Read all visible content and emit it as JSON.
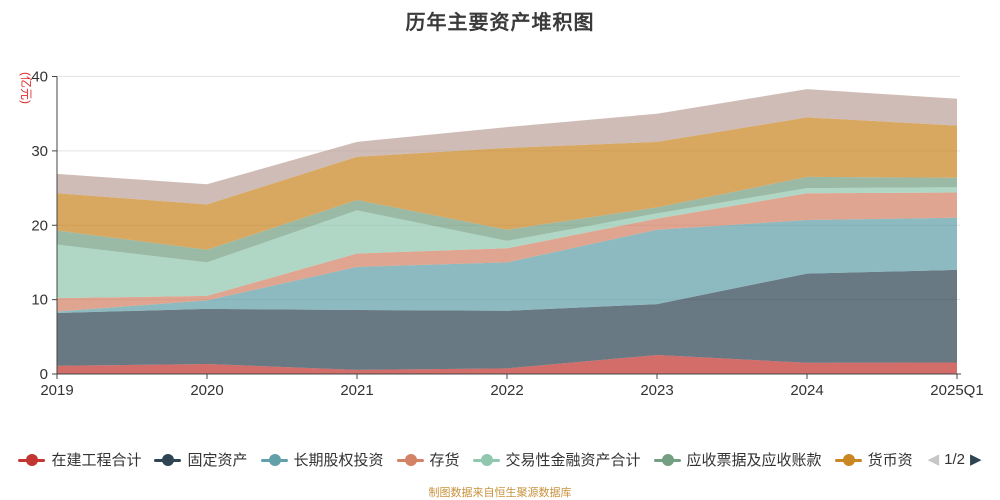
{
  "title": "历年主要资产堆积图",
  "y_axis_unit": "(亿元)",
  "footer_credit": "制图数据来自恒生聚源数据库",
  "colors": {
    "axis_line": "#444444",
    "tick_label": "#333333",
    "grid_line": "#e3e3e3",
    "y_unit_label": "#e02b2b",
    "footer_text": "#c8923c",
    "pager_prev": "#c7c7c7",
    "pager_next": "#2f4554"
  },
  "legend": {
    "items": [
      {
        "label": "在建工程合计",
        "color": "#c23531"
      },
      {
        "label": "固定资产",
        "color": "#2f4554"
      },
      {
        "label": "长期股权投资",
        "color": "#61a0a8"
      },
      {
        "label": "存货",
        "color": "#d48265"
      },
      {
        "label": "交易性金融资产合计",
        "color": "#91c7ae"
      },
      {
        "label": "应收票据及应收账款",
        "color": "#749f83"
      },
      {
        "label": "货币资",
        "color": "#ca8622"
      }
    ],
    "pagination": {
      "prev_icon": "◀",
      "page": "1/2",
      "next_icon": "▶"
    }
  },
  "chart_data": {
    "type": "area",
    "stacked": true,
    "grid": true,
    "categories": [
      "2019",
      "2020",
      "2021",
      "2022",
      "2023",
      "2024",
      "2025Q1"
    ],
    "series": [
      {
        "name": "在建工程合计",
        "color": "#c23531",
        "values": [
          1.1,
          1.35,
          0.55,
          0.75,
          2.55,
          1.5,
          1.55
        ]
      },
      {
        "name": "固定资产",
        "color": "#2f4554",
        "values": [
          7.1,
          7.4,
          8.05,
          7.75,
          6.85,
          12.0,
          12.45
        ]
      },
      {
        "name": "长期股权投资",
        "color": "#61a0a8",
        "values": [
          0.2,
          1.15,
          5.8,
          6.5,
          10.0,
          7.2,
          7.0
        ]
      },
      {
        "name": "存货",
        "color": "#d48265",
        "values": [
          1.8,
          0.6,
          1.8,
          1.9,
          1.5,
          3.6,
          3.4
        ]
      },
      {
        "name": "交易性金融资产合计",
        "color": "#91c7ae",
        "values": [
          7.2,
          4.5,
          5.8,
          1.0,
          0.7,
          0.7,
          0.7
        ]
      },
      {
        "name": "应收票据及应收账款",
        "color": "#749f83",
        "values": [
          1.9,
          1.7,
          1.4,
          1.5,
          0.8,
          1.5,
          1.3
        ]
      },
      {
        "name": "货币资",
        "color": "#ca8622",
        "values": [
          5.0,
          6.1,
          5.8,
          11.0,
          8.8,
          8.0,
          7.0
        ]
      },
      {
        "name": "",
        "color": "#bda29a",
        "values": [
          2.6,
          2.7,
          2.0,
          2.8,
          3.8,
          3.8,
          3.6
        ]
      }
    ],
    "ylabel": "(亿元)",
    "ylim": [
      0,
      40
    ],
    "y_ticks": [
      0,
      10,
      20,
      30,
      40
    ],
    "area_opacity": 0.72,
    "legend_position": "bottom"
  }
}
